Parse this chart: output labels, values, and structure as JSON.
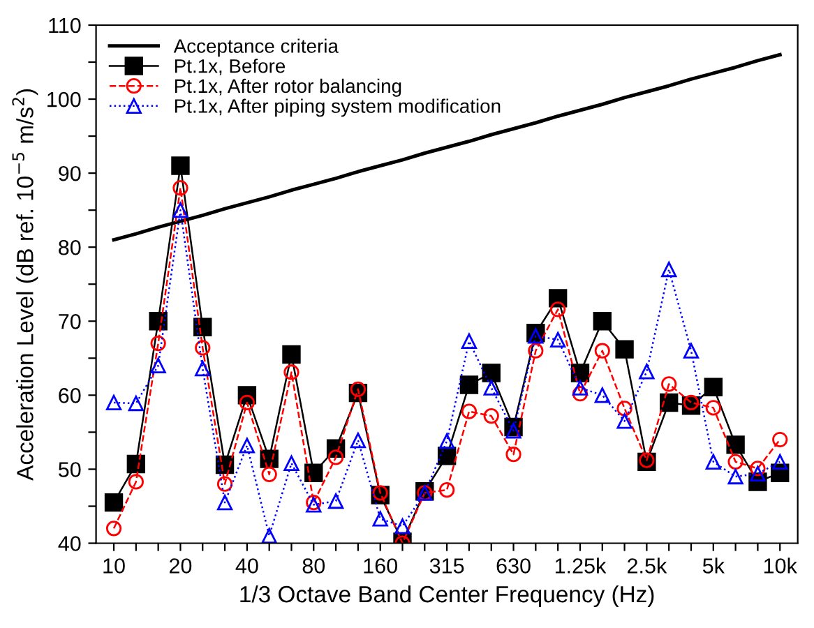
{
  "chart_data": {
    "type": "line",
    "xlabel": "1/3 Octave Band Center Frequency (Hz)",
    "ylabel": "Acceleration Level (dB ref. 10$^{−5}$ m/s$^{2}$)",
    "categories": [
      "10",
      null,
      null,
      "20",
      null,
      null,
      "40",
      null,
      null,
      "80",
      null,
      null,
      "160",
      null,
      null,
      "315",
      null,
      null,
      "630",
      null,
      null,
      "1.25k",
      null,
      null,
      "2.5k",
      null,
      null,
      "5k",
      null,
      null,
      "10k"
    ],
    "ylim": [
      40,
      110
    ],
    "yticks": [
      40,
      {
        "value": 45,
        "label": null
      },
      50,
      {
        "value": 55,
        "label": null
      },
      60,
      {
        "value": 65,
        "label": null
      },
      70,
      {
        "value": 75,
        "label": null
      },
      80,
      {
        "value": 85,
        "label": null
      },
      90,
      {
        "value": 95,
        "label": null
      },
      100,
      {
        "value": 105,
        "label": null
      },
      110
    ],
    "grid": false,
    "legend": "top left",
    "series": [
      {
        "name": "Acceptance criteria",
        "color": "#000000",
        "marker": "none",
        "line_style": "solid",
        "values": [
          81,
          81.8,
          82.7,
          83.5,
          84.3,
          85.2,
          86,
          86.8,
          87.7,
          88.5,
          89.3,
          90.2,
          91,
          91.8,
          92.7,
          93.5,
          94.3,
          95.2,
          96,
          96.8,
          97.7,
          98.5,
          99.3,
          100.2,
          101,
          101.8,
          102.7,
          103.5,
          104.3,
          105.2,
          106
        ]
      },
      {
        "name": "Pt.1x, Before",
        "color": "#000000",
        "marker": "square",
        "line_style": "solid",
        "values": [
          45.5,
          50.7,
          70,
          91,
          69.2,
          50.6,
          60,
          51.4,
          65.5,
          49.5,
          52.8,
          60.3,
          46.5,
          40.2,
          47,
          51.8,
          61.4,
          63,
          55.7,
          68.4,
          73.1,
          63,
          70,
          66.2,
          51,
          59,
          58.6,
          61.1,
          53.3,
          48.3,
          49.5
        ]
      },
      {
        "name": "Pt.1x, After rotor balancing",
        "color": "#ff0000",
        "marker": "circle",
        "line_style": "dashed",
        "values": [
          42,
          48.3,
          67,
          88,
          66.4,
          48,
          59,
          49.3,
          63.1,
          45.5,
          51.6,
          60.8,
          46.8,
          40,
          46.8,
          47.2,
          57.8,
          57.2,
          52,
          66,
          71.6,
          60.2,
          66,
          58.2,
          51.2,
          61.5,
          59,
          58.3,
          51,
          50.1,
          54
        ]
      },
      {
        "name": "Pt.1x, After piping system modification",
        "color": "#0000ff",
        "marker": "triangle",
        "line_style": "dotted",
        "values": [
          59,
          58.9,
          64,
          85,
          63.6,
          45.5,
          53.2,
          41,
          50.8,
          45.2,
          45.7,
          53.9,
          43.3,
          42.3,
          46.8,
          53.8,
          67.3,
          61,
          55.2,
          68,
          67.5,
          61,
          60,
          56.5,
          63.2,
          77,
          66,
          51,
          49,
          49.4,
          51
        ]
      }
    ]
  }
}
